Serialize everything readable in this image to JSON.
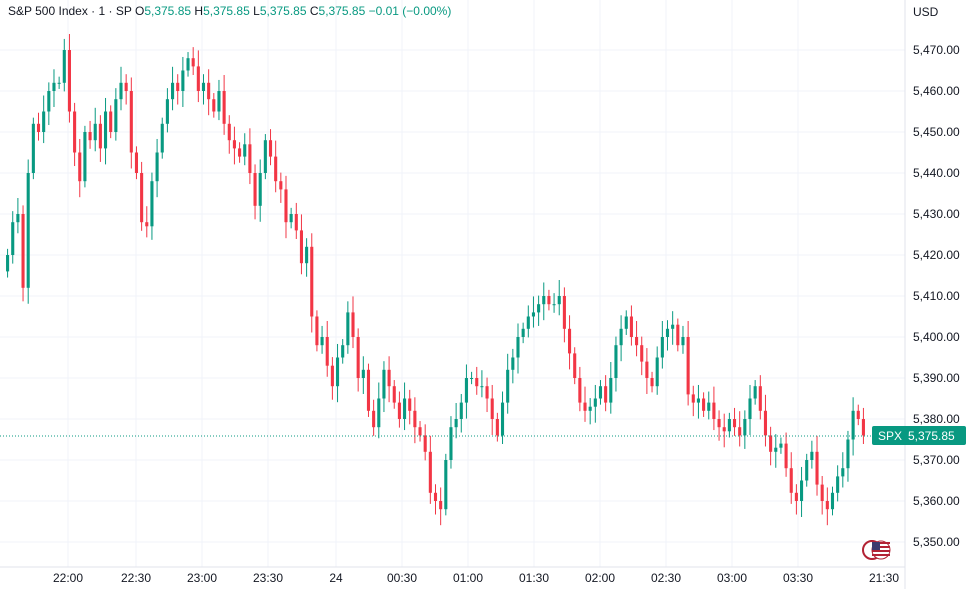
{
  "header": {
    "symbol": "S&P 500 Index · 1 · SP",
    "o_label": "O",
    "o_value": "5,375.85",
    "h_label": "H",
    "h_value": "5,375.85",
    "l_label": "L",
    "l_value": "5,375.85",
    "c_label": "C",
    "c_value": "5,375.85",
    "change": "−0.01 (−0.00%)"
  },
  "currency": "USD",
  "price_tag": {
    "symbol": "SPX",
    "value": "5,375.85"
  },
  "colors": {
    "up": "#089981",
    "down": "#f23645",
    "tag": "#089981",
    "grid": "#f0f3fa",
    "axis": "#131722"
  },
  "chart_data": {
    "type": "candlestick",
    "title": "S&P 500 Index · 1 · SP",
    "ylim": [
      5345,
      5475
    ],
    "y_ticks": [
      5350,
      5360,
      5370,
      5380,
      5390,
      5400,
      5410,
      5420,
      5430,
      5440,
      5450,
      5460,
      5470
    ],
    "y_tick_labels": [
      "5,350.00",
      "5,360.00",
      "5,370.00",
      "5,380.00",
      "5,390.00",
      "5,400.00",
      "5,410.00",
      "5,420.00",
      "5,430.00",
      "5,440.00",
      "5,450.00",
      "5,460.00",
      "5,470.00"
    ],
    "x_tick_labels": [
      "22:00",
      "22:30",
      "23:00",
      "23:30",
      "24",
      "00:30",
      "01:00",
      "01:30",
      "02:00",
      "02:30",
      "03:00",
      "03:30",
      "21:30"
    ],
    "last_price": 5375.85,
    "grid": true,
    "close_series": [
      5420,
      5428,
      5430,
      5412,
      5440,
      5452,
      5450,
      5455,
      5460,
      5462,
      5462,
      5470,
      5455,
      5445,
      5438,
      5450,
      5448,
      5452,
      5446,
      5455,
      5450,
      5458,
      5462,
      5460,
      5445,
      5440,
      5428,
      5427,
      5438,
      5445,
      5452,
      5458,
      5462,
      5460,
      5465,
      5468,
      5466,
      5460,
      5462,
      5458,
      5455,
      5460,
      5452,
      5448,
      5446,
      5444,
      5447,
      5440,
      5432,
      5440,
      5448,
      5444,
      5438,
      5436,
      5428,
      5430,
      5426,
      5418,
      5422,
      5405,
      5398,
      5400,
      5393,
      5388,
      5395,
      5398,
      5406,
      5400,
      5390,
      5392,
      5382,
      5378,
      5385,
      5392,
      5388,
      5384,
      5380,
      5385,
      5382,
      5378,
      5376,
      5372,
      5362,
      5360,
      5358,
      5370,
      5378,
      5380,
      5384,
      5390,
      5390,
      5388,
      5388,
      5385,
      5380,
      5376,
      5384,
      5392,
      5395,
      5400,
      5402,
      5405,
      5406,
      5408,
      5410,
      5408,
      5408,
      5410,
      5402,
      5396,
      5390,
      5384,
      5382,
      5383,
      5385,
      5388,
      5384,
      5390,
      5398,
      5402,
      5405,
      5400,
      5398,
      5394,
      5390,
      5388,
      5395,
      5400,
      5402,
      5403,
      5398,
      5400,
      5386,
      5384,
      5385,
      5382,
      5384,
      5380,
      5378,
      5377,
      5380,
      5378,
      5376,
      5380,
      5385,
      5388,
      5382,
      5376,
      5372,
      5373,
      5374,
      5368,
      5362,
      5360,
      5365,
      5370,
      5372,
      5364,
      5360,
      5358,
      5362,
      5366,
      5368,
      5375,
      5382,
      5380,
      5376
    ]
  }
}
